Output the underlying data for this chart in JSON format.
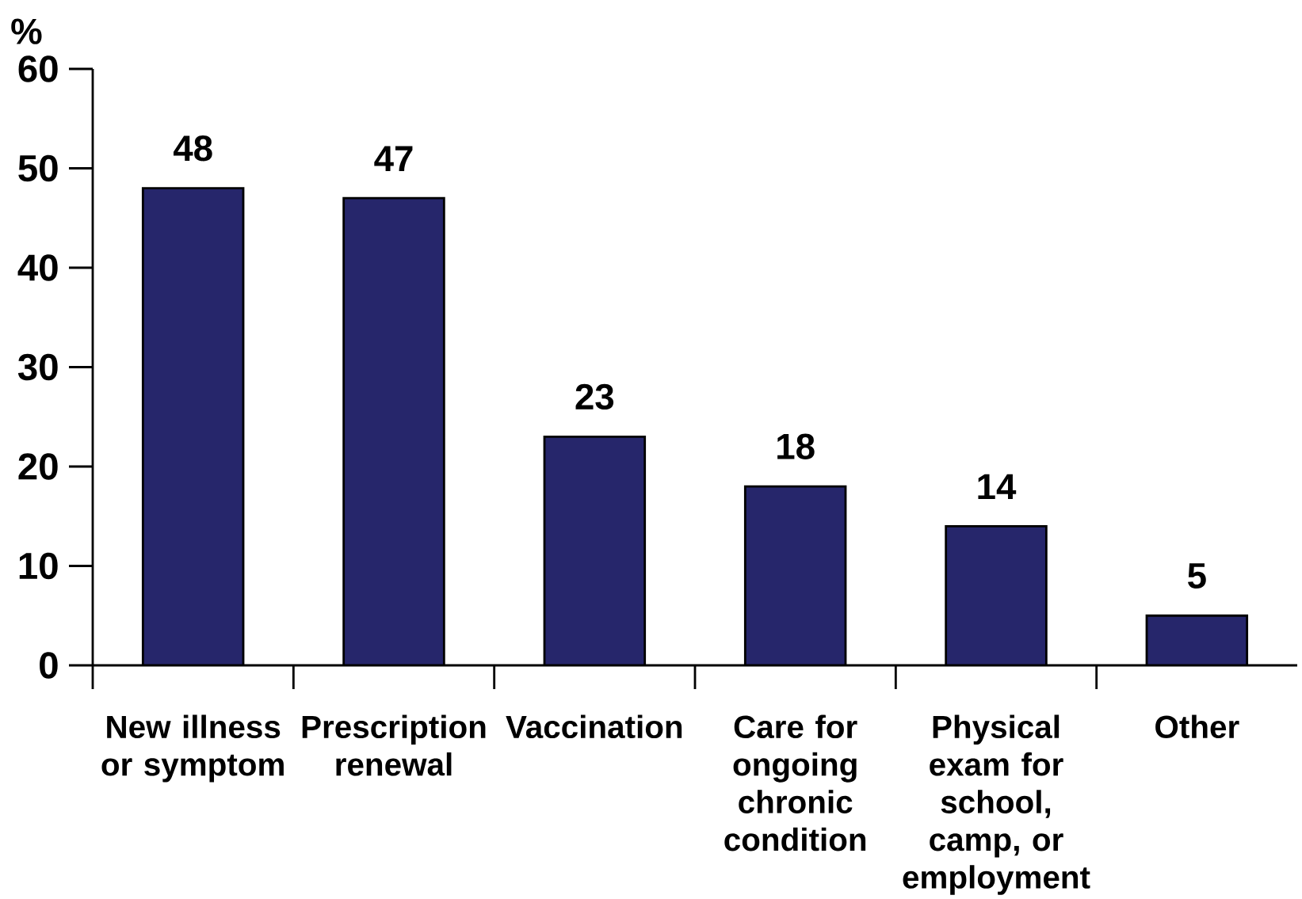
{
  "chart_data": {
    "type": "bar",
    "ylabel": "%",
    "categories": [
      "New illness or symptom",
      "Prescription renewal",
      "Vaccination",
      "Care for ongoing chronic condition",
      "Physical exam for school, camp, or employment",
      "Other"
    ],
    "values": [
      48,
      47,
      23,
      18,
      14,
      5
    ],
    "color": "#26266b",
    "ylim": [
      0,
      60
    ],
    "yticks": [
      0,
      10,
      20,
      30,
      40,
      50,
      60
    ],
    "data_labels": true
  }
}
